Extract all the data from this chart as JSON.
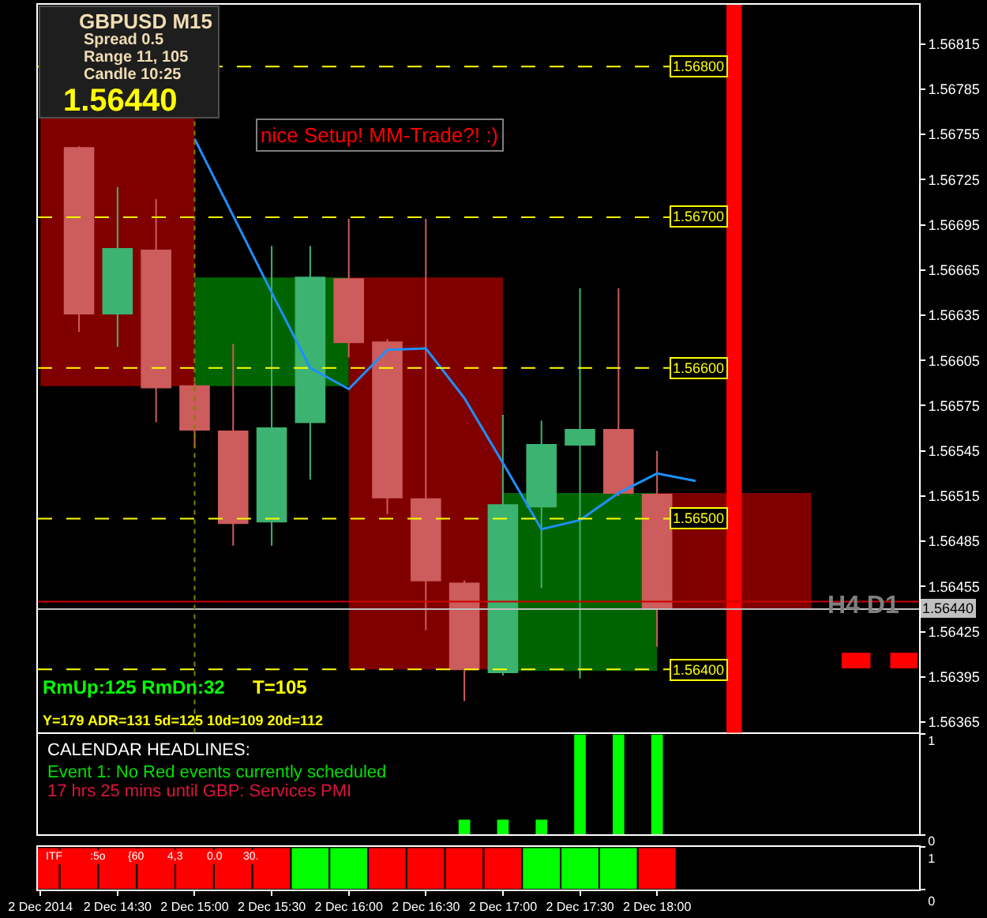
{
  "chart_data": [
    {
      "type": "candlestick",
      "x": [
        "2014-12-02T14:15",
        "2014-12-02T14:30",
        "2014-12-02T14:45",
        "2014-12-02T15:00",
        "2014-12-02T15:15",
        "2014-12-02T15:30",
        "2014-12-02T15:45",
        "2014-12-02T16:00",
        "2014-12-02T16:15",
        "2014-12-02T16:30",
        "2014-12-02T16:45",
        "2014-12-02T17:00",
        "2014-12-02T17:15",
        "2014-12-02T17:30",
        "2014-12-02T17:45",
        "2014-12-02T18:00"
      ],
      "ohlc": [
        [
          1.56746,
          1.56747,
          1.56624,
          1.56636
        ],
        [
          1.56636,
          1.5672,
          1.56614,
          1.56679
        ],
        [
          1.56678,
          1.56712,
          1.56564,
          1.56587
        ],
        [
          1.56588,
          1.5659,
          1.56547,
          1.56559
        ],
        [
          1.56558,
          1.56616,
          1.56482,
          1.56497
        ],
        [
          1.56498,
          1.56681,
          1.56482,
          1.5656
        ],
        [
          1.56564,
          1.56681,
          1.56526,
          1.5666
        ],
        [
          1.56659,
          1.56699,
          1.56607,
          1.56617
        ],
        [
          1.56617,
          1.56619,
          1.56503,
          1.56514
        ],
        [
          1.56513,
          1.56699,
          1.56426,
          1.56459
        ],
        [
          1.56457,
          1.56459,
          1.56379,
          1.564
        ],
        [
          1.56398,
          1.56569,
          1.56396,
          1.56509
        ],
        [
          1.56508,
          1.56565,
          1.56454,
          1.56549
        ],
        [
          1.56549,
          1.56653,
          1.56394,
          1.56559
        ],
        [
          1.56559,
          1.56653,
          1.56515,
          1.56517
        ],
        [
          1.56516,
          1.56545,
          1.56415,
          1.5644
        ]
      ],
      "colors": [
        "#cd5c5c",
        "#3cb371",
        "#cd5c5c",
        "#cd5c5c",
        "#cd5c5c",
        "#3cb371",
        "#3cb371",
        "#cd5c5c",
        "#cd5c5c",
        "#cd5c5c",
        "#cd5c5c",
        "#3cb371",
        "#3cb371",
        "#3cb371",
        "#cd5c5c",
        "#cd5c5c"
      ],
      "series": [
        {
          "type": "bar",
          "x": [
            "2014-12-02T14:30",
            "2014-12-02T15:30",
            "2014-12-02T16:30",
            "2014-12-02T17:30",
            "2014-12-02T18:30"
          ],
          "base": [
            1.56588,
            1.56588,
            1.564,
            1.56399,
            1.5644
          ],
          "values": [
            0.00179,
            0.00072,
            0.0026,
            0.00118,
            0.00077
          ],
          "colors": [
            "#800000",
            "#006400",
            "#800000",
            "#006400",
            "#800000"
          ]
        },
        {
          "type": "line",
          "x": [
            "2014-12-02T15:00",
            "2014-12-02T15:15",
            "2014-12-02T15:30",
            "2014-12-02T15:45",
            "2014-12-02T16:00",
            "2014-12-02T16:15",
            "2014-12-02T16:30",
            "2014-12-02T16:45",
            "2014-12-02T17:00",
            "2014-12-02T17:15",
            "2014-12-02T17:30",
            "2014-12-02T17:45",
            "2014-12-02T18:00",
            "2014-12-02T18:15"
          ],
          "values": [
            1.56752,
            1.56701,
            1.5665,
            1.566,
            1.56586,
            1.56612,
            1.56613,
            1.5658,
            1.56537,
            1.56493,
            1.56499,
            1.56517,
            1.5653,
            1.56525
          ],
          "color": "#1e90ff"
        }
      ],
      "xlim": [
        "2014-12-02T13:59",
        "2014-12-02T19:42"
      ],
      "ylim": [
        1.56358,
        1.56841
      ],
      "yticks": [
        1.56815,
        1.56785,
        1.56755,
        1.56725,
        1.56695,
        1.56665,
        1.56635,
        1.56605,
        1.56575,
        1.56545,
        1.56515,
        1.56485,
        1.56455,
        1.56425,
        1.56395,
        1.56365
      ],
      "tick_labels": "y",
      "ref_lines": [
        {
          "axis": "y",
          "value": 1.568,
          "label": "1.56800",
          "color": "#ffff00",
          "line_style": "dashed"
        },
        {
          "axis": "y",
          "value": 1.567,
          "label": "1.56700",
          "color": "#ffff00",
          "line_style": "dashed"
        },
        {
          "axis": "y",
          "value": 1.566,
          "label": "1.56600",
          "color": "#ffff00",
          "line_style": "dashed"
        },
        {
          "axis": "y",
          "value": 1.565,
          "label": "1.56500",
          "color": "#ffff00",
          "line_style": "dashed"
        },
        {
          "axis": "y",
          "value": 1.564,
          "label": "1.56400",
          "color": "#ffff00",
          "line_style": "dashed"
        },
        {
          "axis": "y",
          "value": 1.56445,
          "color": "#cc0000"
        },
        {
          "axis": "y",
          "value": 1.5644,
          "label": "1.56440",
          "color": "#c0c0c0"
        },
        {
          "axis": "x",
          "value": "2014-12-02T15:00",
          "color": "#808000",
          "line_style": "dotted"
        }
      ],
      "bands": [
        {
          "axis": "x",
          "from": "2014-12-02T18:27",
          "to": "2014-12-02T18:33",
          "color": "#ff0000"
        }
      ],
      "annotations": [
        "GBPUSD M15",
        "Spread 0.5",
        "Range 11, 105",
        "Candle 10:25",
        "1.56440",
        "nice Setup! MM-Trade?! :)",
        "H4 D1",
        "RmUp:125 RmDn:32",
        "T=105",
        "Y=179 ADR=131 5d=125 10d=109 20d=112"
      ]
    },
    {
      "type": "bar",
      "x": [
        "2014-12-02T16:45",
        "2014-12-02T17:00",
        "2014-12-02T17:15",
        "2014-12-02T17:30",
        "2014-12-02T17:45",
        "2014-12-02T18:00"
      ],
      "values": [
        0.15,
        0.15,
        0.15,
        1,
        1,
        1
      ],
      "color": "#00ff00",
      "xlim": [
        "2014-12-02T13:59",
        "2014-12-02T19:42"
      ],
      "ylim": [
        0,
        1
      ],
      "yticks": [
        0,
        1
      ],
      "tick_labels": "y",
      "annotations": [
        "CALENDAR HEADLINES:",
        "Event 1: No Red events currently scheduled",
        "17 hrs 25 mins until GBP: Services PMI"
      ]
    },
    {
      "type": "bar",
      "x": [
        "2014-12-02T14:00",
        "2014-12-02T14:15",
        "2014-12-02T14:30",
        "2014-12-02T14:45",
        "2014-12-02T15:00",
        "2014-12-02T15:15",
        "2014-12-02T15:30",
        "2014-12-02T15:45",
        "2014-12-02T16:00",
        "2014-12-02T16:15",
        "2014-12-02T16:30",
        "2014-12-02T16:45",
        "2014-12-02T17:00",
        "2014-12-02T17:15",
        "2014-12-02T17:30",
        "2014-12-02T17:45",
        "2014-12-02T18:00"
      ],
      "values": [
        1,
        1,
        1,
        1,
        1,
        1,
        1,
        1,
        1,
        1,
        1,
        1,
        1,
        1,
        1,
        1,
        1
      ],
      "colors": [
        "#ff0000",
        "#ff0000",
        "#ff0000",
        "#ff0000",
        "#ff0000",
        "#ff0000",
        "#ff0000",
        "#00ff00",
        "#00ff00",
        "#ff0000",
        "#ff0000",
        "#ff0000",
        "#ff0000",
        "#00ff00",
        "#00ff00",
        "#00ff00",
        "#ff0000"
      ],
      "xlim": [
        "2014-12-02T13:59",
        "2014-12-02T19:42"
      ],
      "ylim": [
        0,
        1
      ],
      "yticks": [
        0,
        1
      ],
      "xticks": [
        {
          "value": "2014-12-02T14:00",
          "label": "2 Dec 2014"
        },
        {
          "value": "2014-12-02T14:30",
          "label": "2 Dec 14:30"
        },
        {
          "value": "2014-12-02T15:00",
          "label": "2 Dec 15:00"
        },
        {
          "value": "2014-12-02T15:30",
          "label": "2 Dec 15:30"
        },
        {
          "value": "2014-12-02T16:00",
          "label": "2 Dec 16:00"
        },
        {
          "value": "2014-12-02T16:30",
          "label": "2 Dec 16:30"
        },
        {
          "value": "2014-12-02T17:00",
          "label": "2 Dec 17:00"
        },
        {
          "value": "2014-12-02T17:30",
          "label": "2 Dec 17:30"
        },
        {
          "value": "2014-12-02T18:00",
          "label": "2 Dec 18:00"
        }
      ],
      "annotations": [
        "ITF",
        ":5o",
        "{60",
        "4,3",
        "0.0",
        "30."
      ]
    }
  ]
}
